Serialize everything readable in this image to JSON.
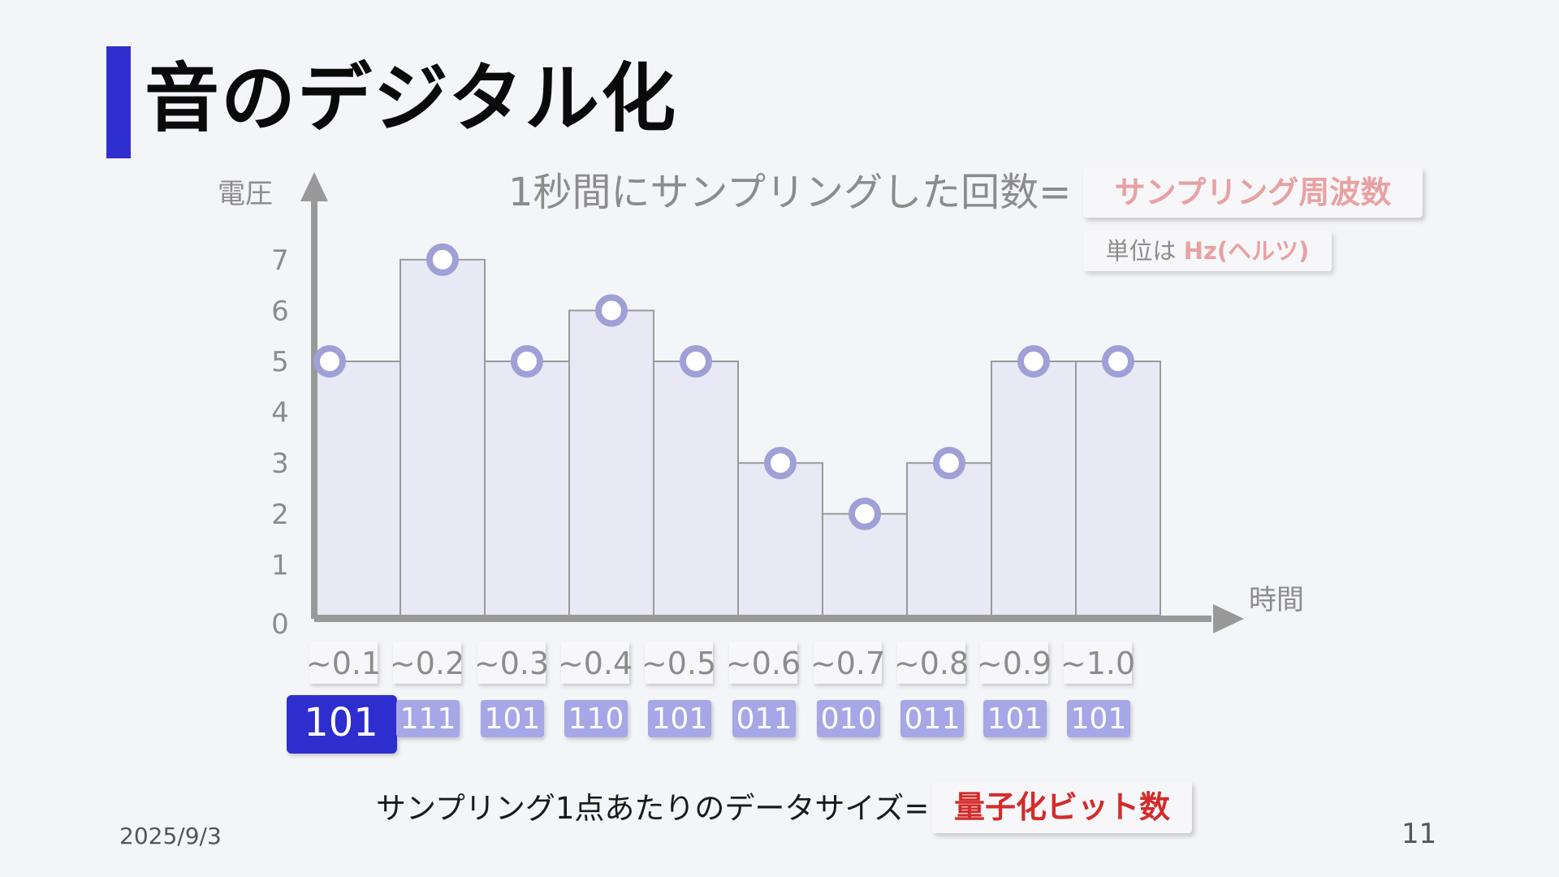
{
  "slide": {
    "title": "音のデジタル化",
    "date": "2025/9/3",
    "page_number": "11",
    "accent_color": "#2f2fcf"
  },
  "annotations": {
    "sampling_text": "1秒間にサンプリングした回数=",
    "sampling_term": "サンプリング周波数",
    "unit_prefix": "単位は ",
    "unit_term": "Hz(ヘルツ)",
    "datasize_text": "サンプリング1点あたりのデータサイズ=",
    "datasize_term": "量子化ビット数"
  },
  "chart_data": {
    "type": "bar",
    "ylabel": "電圧",
    "xlabel": "時間",
    "ylim": [
      0,
      7
    ],
    "yticks": [
      "0",
      "1",
      "2",
      "3",
      "4",
      "5",
      "6",
      "7"
    ],
    "categories": [
      "~0.1",
      "~0.2",
      "~0.3",
      "~0.4",
      "~0.5",
      "~0.6",
      "~0.7",
      "~0.8",
      "~0.9",
      "~1.0"
    ],
    "values": [
      5,
      7,
      5,
      6,
      5,
      3,
      2,
      3,
      5,
      5
    ],
    "binary_codes": [
      "101",
      "111",
      "101",
      "110",
      "101",
      "011",
      "010",
      "011",
      "101",
      "101"
    ],
    "highlighted_index": 0,
    "bar_color": "#e8e9f5",
    "marker_color": "#9fa0d6",
    "code_color": "#a6a7e6",
    "highlight_color": "#2f2fcf"
  }
}
